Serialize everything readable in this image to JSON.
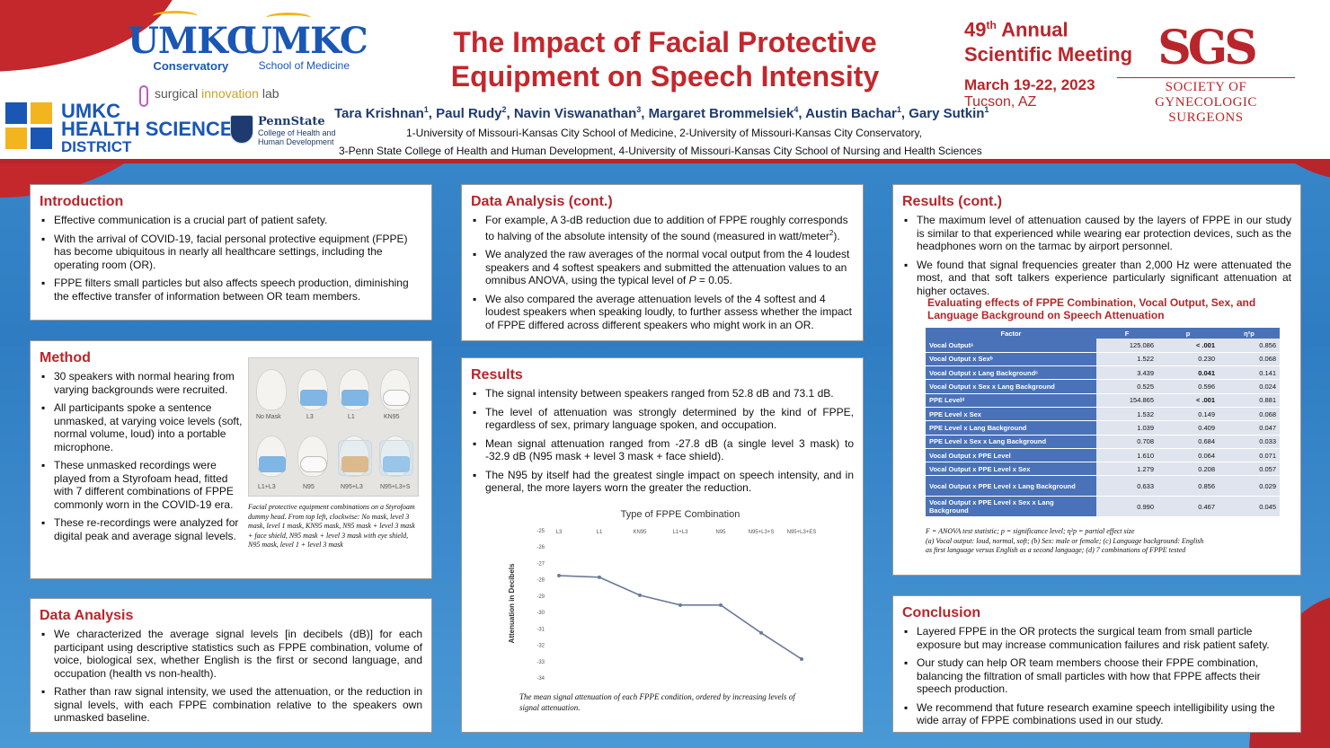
{
  "header": {
    "logo1": {
      "name": "UMKC",
      "sub": "Conservatory"
    },
    "logo2": {
      "name": "UMKC",
      "sub": "School of Medicine"
    },
    "surgical": {
      "part1": "surgical ",
      "part2": "innovation",
      "part3": " lab"
    },
    "hsd": {
      "line1": "UMKC",
      "line2": "HEALTH SCIENCES",
      "line3": "DISTRICT"
    },
    "pennstate": {
      "name": "PennState",
      "sub1": "College of Health and",
      "sub2": "Human Development"
    },
    "title_line1": "The Impact of Facial Protective",
    "title_line2": "Equipment on Speech Intensity",
    "meeting": {
      "num": "49",
      "sup": "th",
      "line1_rest": " Annual",
      "line2": "Scientific Meeting",
      "dates": "March 19-22, 2023",
      "location": "Tucson, AZ"
    },
    "sgs": {
      "abbr": "SGS",
      "line1": "SOCIETY OF",
      "line2": "GYNECOLOGIC SURGEONS"
    },
    "authors": [
      {
        "name": "Tara Krishnan",
        "sup": "1",
        "sep": ", "
      },
      {
        "name": "Paul Rudy",
        "sup": "2",
        "sep": ", "
      },
      {
        "name": "Navin Viswanathan",
        "sup": "3",
        "sep": ", "
      },
      {
        "name": "Margaret Brommelsiek",
        "sup": "4",
        "sep": ", "
      },
      {
        "name": "Austin Bachar",
        "sup": "1",
        "sep": ", "
      },
      {
        "name": "Gary Sutkin",
        "sup": "1",
        "sep": ""
      }
    ],
    "affiliations_line1": "1-University of Missouri-Kansas City School of Medicine, 2-University of Missouri-Kansas City Conservatory,",
    "affiliations_line2": "3-Penn State College of Health and Human Development, 4-University of Missouri-Kansas City School of Nursing and Health Sciences"
  },
  "introduction": {
    "heading": "Introduction",
    "bullets": [
      "Effective communication is a crucial part of patient safety.",
      "With the arrival of COVID-19, facial personal protective equipment (FPPE) has become ubiquitous in nearly all healthcare settings, including the operating room (OR).",
      "FPPE filters small particles but also affects speech production, diminishing the effective transfer of information between OR team members."
    ]
  },
  "method": {
    "heading": "Method",
    "bullets": [
      "30 speakers with normal hearing from varying backgrounds were recruited.",
      "All participants spoke a sentence unmasked, at varying voice levels (soft, normal volume, loud) into a portable microphone.",
      "These unmasked recordings were played from a Styrofoam head, fitted with 7 different combinations of FPPE commonly worn in the COVID-19 era.",
      "These re-recordings were analyzed for digital peak and average signal levels."
    ],
    "photo_labels": [
      "No Mask",
      "L3",
      "L1",
      "KN95",
      "L1+L3",
      "N95",
      "N95+L3",
      "N95+L3+S"
    ],
    "caption": "Facial protective equipment combinations on a Styrofoam dummy head. From top left, clockwise: No mask, level 3 mask, level 1 mask, KN95 mask, N95 mask + level 3 mask + face shield, N95 mask + level 3 mask with eye shield, N95 mask, level 1 + level 3 mask"
  },
  "data_analysis": {
    "heading": "Data Analysis",
    "bullets": [
      "We characterized the average signal levels [in decibels (dB)] for each participant using descriptive statistics such as FPPE combination, volume of voice, biological sex, whether English is the first or second language, and occupation (health vs non-health).",
      "Rather than raw signal intensity, we used the attenuation, or the reduction in signal levels, with each FPPE combination relative to the speakers own unmasked baseline."
    ]
  },
  "data_analysis_cont": {
    "heading": "Data Analysis (cont.)",
    "b1_text": "For example, A 3-dB reduction due to addition of FPPE roughly corresponds to halving of the absolute intensity of the sound (measured in watt/meter",
    "b1_sup": "2",
    "b1_end": ").",
    "b2_text": "We analyzed the raw averages of the normal vocal output from the 4 loudest speakers and 4 softest speakers and submitted the attenuation values to an omnibus ANOVA, using the typical level of ",
    "b2_italic": "P",
    "b2_end": " = 0.05.",
    "b3": "We also compared the average attenuation levels of the 4 softest and 4 loudest speakers when speaking loudly, to further assess whether the impact of FPPE differed across different speakers who might work in an OR."
  },
  "results": {
    "heading": "Results",
    "bullets": [
      "The signal intensity between speakers ranged from 52.8 dB and 73.1 dB.",
      "The level of attenuation was strongly determined by the kind of FPPE, regardless of sex, primary language spoken, and occupation.",
      "Mean signal attenuation ranged from -27.8 dB (a single level 3 mask) to -32.9 dB (N95 mask + level 3 mask + face shield).",
      "The N95 by itself had the greatest single impact on speech intensity, and in general, the more layers worn the greater the reduction."
    ],
    "chart_caption": "The mean signal attenuation of each FPPE condition, ordered by increasing levels of signal attenuation."
  },
  "chart_data": {
    "type": "line",
    "title": "Type of FPPE Combination",
    "categories": [
      "L3",
      "L1",
      "KN95",
      "L1+L3",
      "N95",
      "N95+L3+S",
      "N95+L3+ES"
    ],
    "values": [
      -27.8,
      -27.9,
      -29.0,
      -29.6,
      -29.6,
      -31.3,
      -32.9
    ],
    "xlabel": "Type of FPPE Combination",
    "ylabel": "Attenuation in Decibels",
    "ylim": [
      -34,
      -25
    ],
    "yticks": [
      -25,
      -26,
      -27,
      -28,
      -29,
      -30,
      -31,
      -32,
      -33,
      -34
    ],
    "line_color": "#6c7a9c"
  },
  "results_cont": {
    "heading": "Results (cont.)",
    "bullets": [
      "The maximum level of attenuation caused by the layers of FPPE in our study is similar to that experienced while wearing ear protection devices, such as the headphones worn on the tarmac by airport personnel.",
      "We found that signal frequencies greater than 2,000 Hz were attenuated the most, and that soft talkers experience particularly significant attenuation at higher octaves."
    ],
    "table_title_line1": "Evaluating effects of FPPE Combination, Vocal Output, Sex, and",
    "table_title_line2": "Language Background on Speech Attenuation",
    "table_headers": [
      "Factor",
      "F",
      "p",
      "η²p"
    ],
    "table_rows": [
      {
        "factor": "Vocal Outputᵃ",
        "F": "125.086",
        "p": "< .001",
        "eta": "0.856",
        "pbold": true
      },
      {
        "factor": "Vocal Output x Sexᵇ",
        "F": "1.522",
        "p": "0.230",
        "eta": "0.068",
        "pbold": false
      },
      {
        "factor": "Vocal Output x Lang Backgroundᶜ",
        "F": "3.439",
        "p": "0.041",
        "eta": "0.141",
        "pbold": true
      },
      {
        "factor": "Vocal Output x Sex x Lang Background",
        "F": "0.525",
        "p": "0.596",
        "eta": "0.024",
        "pbold": false
      },
      {
        "factor": "PPE Levelᵈ",
        "F": "154.865",
        "p": "< .001",
        "eta": "0.881",
        "pbold": true
      },
      {
        "factor": "PPE Level x Sex",
        "F": "1.532",
        "p": "0.149",
        "eta": "0.068",
        "pbold": false
      },
      {
        "factor": "PPE Level x Lang Background",
        "F": "1.039",
        "p": "0.409",
        "eta": "0.047",
        "pbold": false
      },
      {
        "factor": "PPE Level x Sex x Lang Background",
        "F": "0.708",
        "p": "0.684",
        "eta": "0.033",
        "pbold": false
      },
      {
        "factor": "Vocal Output x PPE Level",
        "F": "1.610",
        "p": "0.064",
        "eta": "0.071",
        "pbold": false
      },
      {
        "factor": "Vocal Output x PPE Level x Sex",
        "F": "1.279",
        "p": "0.208",
        "eta": "0.057",
        "pbold": false
      },
      {
        "factor": "Vocal Output x PPE Level x Lang Background",
        "F": "0.633",
        "p": "0.856",
        "eta": "0.029",
        "pbold": false
      },
      {
        "factor": "Vocal Output x PPE Level x Sex x Lang Background",
        "F": "0.990",
        "p": "0.467",
        "eta": "0.045",
        "pbold": false
      }
    ],
    "note1": "F = ANOVA test statistic; p = significance level; η²p = partial effect size",
    "note2": "(a) Vocal output: loud, normal, soft; (b) Sex: male or female; (c) Language background: English",
    "note3": "as first language versus English as a second language; (d) 7 combinations of FPPE tested"
  },
  "conclusion": {
    "heading": "Conclusion",
    "bullets": [
      "Layered FPPE in the OR protects the surgical team from small particle exposure but may increase communication failures and risk patient safety.",
      "Our study can help OR team members choose their FPPE combination, balancing the filtration of small particles with how that FPPE affects their speech production.",
      "We recommend that future research examine speech intelligibility using the wide array of FPPE combinations used in our study."
    ]
  }
}
